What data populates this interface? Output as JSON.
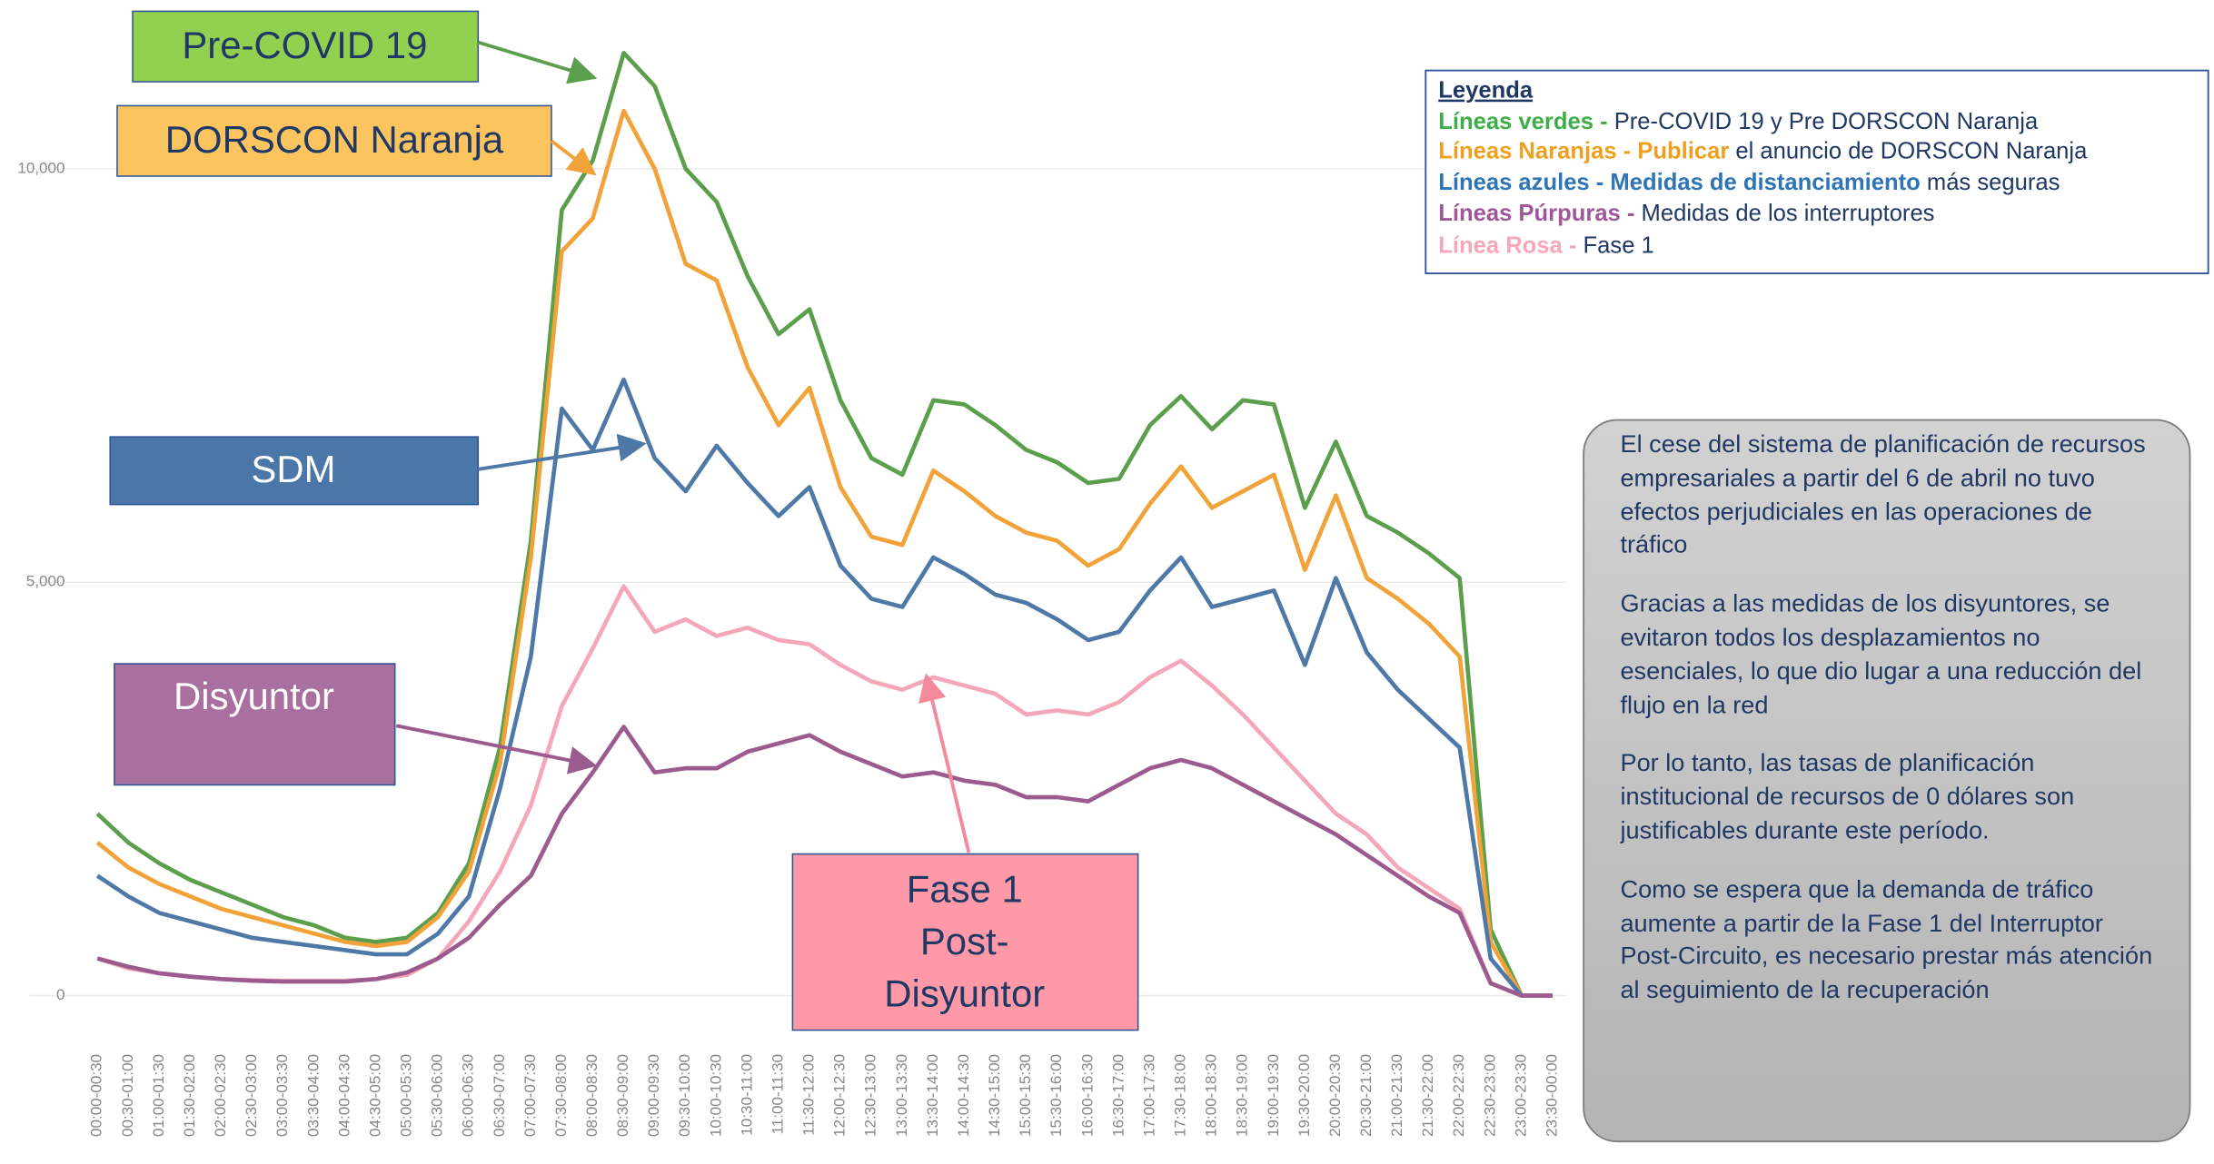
{
  "chart_data": {
    "type": "line",
    "categories": [
      "00:00-00:30",
      "00:30-01:00",
      "01:00-01:30",
      "01:30-02:00",
      "02:00-02:30",
      "02:30-03:00",
      "03:00-03:30",
      "03:30-04:00",
      "04:00-04:30",
      "04:30-05:00",
      "05:00-05:30",
      "05:30-06:00",
      "06:00-06:30",
      "06:30-07:00",
      "07:00-07:30",
      "07:30-08:00",
      "08:00-08:30",
      "08:30-09:00",
      "09:00-09:30",
      "09:30-10:00",
      "10:00-10:30",
      "10:30-11:00",
      "11:00-11:30",
      "11:30-12:00",
      "12:00-12:30",
      "12:30-13:00",
      "13:00-13:30",
      "13:30-14:00",
      "14:00-14:30",
      "14:30-15:00",
      "15:00-15:30",
      "15:30-16:00",
      "16:00-16:30",
      "16:30-17:00",
      "17:00-17:30",
      "17:30-18:00",
      "18:00-18:30",
      "18:30-19:00",
      "19:00-19:30",
      "19:30-20:00",
      "20:00-20:30",
      "20:30-21:00",
      "21:00-21:30",
      "21:30-22:00",
      "22:00-22:30",
      "22:30-23:00",
      "23:00-23:30",
      "23:30-00:00"
    ],
    "series": [
      {
        "color": "#5b9e4c",
        "values": [
          2200,
          1850,
          1600,
          1400,
          1250,
          1100,
          950,
          850,
          700,
          650,
          700,
          1000,
          1600,
          3000,
          5500,
          9500,
          10100,
          11400,
          11000,
          10000,
          9600,
          8700,
          8000,
          8300,
          7200,
          6500,
          6300,
          7200,
          7150,
          6900,
          6600,
          6450,
          6200,
          6250,
          6900,
          7250,
          6850,
          7200,
          7150,
          5900,
          6700,
          5800,
          5600,
          5350,
          5050,
          800,
          0,
          0
        ]
      },
      {
        "color": "#f1a33a",
        "values": [
          1850,
          1550,
          1350,
          1200,
          1050,
          950,
          850,
          750,
          650,
          600,
          650,
          950,
          1500,
          2800,
          5300,
          9000,
          9400,
          10700,
          10000,
          8850,
          8650,
          7600,
          6900,
          7350,
          6150,
          5550,
          5450,
          6350,
          6100,
          5800,
          5600,
          5500,
          5200,
          5400,
          5950,
          6400,
          5900,
          6100,
          6300,
          5150,
          6050,
          5050,
          4800,
          4500,
          4100,
          650,
          0,
          0
        ]
      },
      {
        "color": "#4e79a7",
        "values": [
          1450,
          1200,
          1000,
          900,
          800,
          700,
          650,
          600,
          550,
          500,
          500,
          750,
          1200,
          2500,
          4100,
          7100,
          6600,
          7450,
          6500,
          6100,
          6650,
          6200,
          5800,
          6150,
          5200,
          4800,
          4700,
          5300,
          5100,
          4850,
          4750,
          4550,
          4300,
          4400,
          4900,
          5300,
          4700,
          4800,
          4900,
          4000,
          5050,
          4150,
          3700,
          3350,
          3000,
          450,
          0,
          0
        ]
      },
      {
        "color": "#f4a7b9",
        "values": [
          450,
          330,
          270,
          230,
          200,
          190,
          180,
          180,
          180,
          200,
          250,
          450,
          900,
          1500,
          2300,
          3500,
          4200,
          4950,
          4400,
          4550,
          4350,
          4450,
          4300,
          4250,
          4000,
          3800,
          3700,
          3850,
          3750,
          3650,
          3400,
          3450,
          3400,
          3550,
          3850,
          4050,
          3750,
          3400,
          3000,
          2600,
          2200,
          1950,
          1550,
          1300,
          1050,
          150,
          0,
          0
        ]
      },
      {
        "color": "#9c5b8e",
        "values": [
          450,
          350,
          270,
          230,
          200,
          180,
          170,
          170,
          170,
          200,
          280,
          450,
          700,
          1100,
          1450,
          2200,
          2700,
          3250,
          2700,
          2750,
          2750,
          2950,
          3050,
          3150,
          2950,
          2800,
          2650,
          2700,
          2600,
          2550,
          2400,
          2400,
          2350,
          2550,
          2750,
          2850,
          2750,
          2550,
          2350,
          2150,
          1950,
          1700,
          1450,
          1200,
          1000,
          150,
          0,
          0
        ]
      }
    ],
    "ylim": [
      -400,
      11700
    ],
    "yticks": [
      0,
      {
        "value": 5000,
        "label": "5,000"
      },
      {
        "value": 10000,
        "label": "10,000"
      }
    ],
    "grid": true,
    "annotations": [
      {
        "text": "Pre-COVID 19"
      },
      {
        "text": "DORSCON Naranja"
      },
      {
        "text": "SDM"
      },
      {
        "text": "Disyuntor"
      },
      {
        "lines": [
          "Fase 1",
          "Post-",
          "Disyuntor"
        ]
      }
    ],
    "legend": {
      "title": "Leyenda",
      "entries": [
        {
          "label": "Líneas verdes -",
          "text": "Pre-COVID 19 y Pre DORSCON Naranja"
        },
        {
          "label": "Líneas Naranjas - Publicar",
          "text": "el anuncio de DORSCON Naranja"
        },
        {
          "label": "Líneas azules - Medidas de distanciamiento",
          "text": "más seguras"
        },
        {
          "label": "Líneas Púrpuras -",
          "text": "Medidas de los interruptores"
        },
        {
          "label": "Línea Rosa -",
          "text": "Fase 1"
        }
      ]
    },
    "note": [
      "El cese del sistema de planificación de recursos empresariales a partir del 6 de abril no tuvo efectos perjudiciales en las operaciones de tráfico",
      "Gracias a las medidas de los disyuntores, se evitaron todos los desplazamientos no esenciales, lo que dio lugar a una reducción del flujo en la red",
      "Por lo tanto, las tasas de planificación institucional de recursos de 0 dólares son justificables durante este período.",
      "Como se espera que la demanda de tráfico aumente a partir de la Fase 1 del Interruptor Post-Circuito, es necesario prestar más atención al seguimiento de la recuperación"
    ]
  }
}
